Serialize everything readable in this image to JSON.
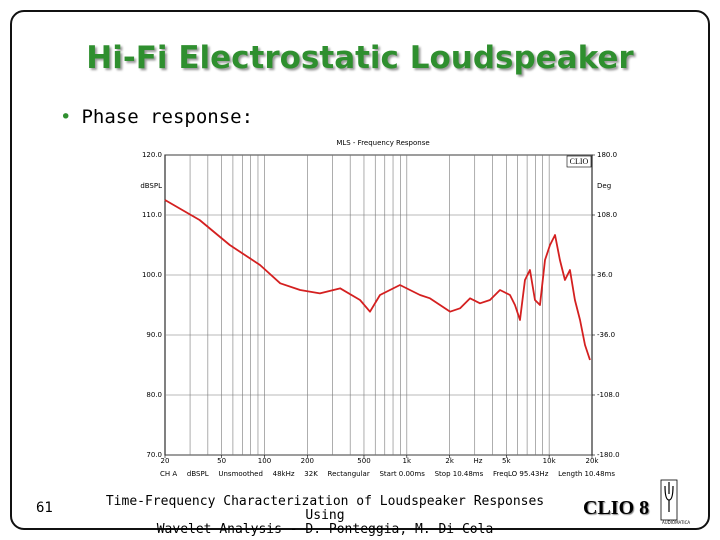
{
  "slide": {
    "title": "Hi-Fi Electrostatic Loudspeaker",
    "bullet": "Phase response:",
    "page_number": "61",
    "citation": [
      "Time-Frequency Characterization of Loudspeaker Responses Using",
      "Wavelet Analysis - D. Ponteggia, M. Di Cola"
    ],
    "logo": "CLIO 8",
    "logo_sub": "AUDIOMATICA"
  },
  "chart_data": {
    "type": "line",
    "title": "MLS - Frequency Response",
    "badge": "CLIO",
    "ylabel": "dBSPL",
    "y2label": "Deg",
    "xlabel": "Hz",
    "xscale": "log",
    "grid": true,
    "x": [
      20,
      35,
      57,
      93,
      129,
      178,
      245,
      340,
      469,
      551,
      648,
      895,
      1052,
      1238,
      1455,
      1711,
      2011,
      2364,
      2779,
      3267,
      3840,
      4514,
      5306,
      5752,
      6237,
      6762,
      7331,
      7950,
      8620,
      9350,
      10140,
      11000,
      11900,
      12910,
      14000,
      15170,
      16480,
      17860,
      19360
    ],
    "series": [
      {
        "color": "#d42020",
        "axis": "y2",
        "values": [
          126,
          102,
          72,
          48,
          26,
          18,
          14,
          20,
          6,
          -8,
          12,
          24,
          18,
          12,
          8,
          0,
          -8,
          -4,
          8,
          2,
          6,
          18,
          12,
          0,
          -18,
          30,
          42,
          6,
          0,
          54,
          72,
          84,
          54,
          30,
          42,
          6,
          -18,
          -48,
          -66
        ]
      }
    ],
    "xlim": [
      20,
      20000
    ],
    "xticks": [
      20,
      50,
      100,
      200,
      500,
      {
        "value": 1000,
        "label": "1k"
      },
      {
        "value": 2000,
        "label": "2k"
      },
      {
        "value": 5000,
        "label": "5k"
      },
      {
        "value": 10000,
        "label": "10k"
      },
      {
        "value": 20000,
        "label": "20k"
      }
    ],
    "ylim": [
      70,
      120
    ],
    "yticks": [
      {
        "value": 70,
        "label": "70.0"
      },
      {
        "value": 80,
        "label": "80.0"
      },
      {
        "value": 90,
        "label": "90.0"
      },
      {
        "value": 100,
        "label": "100.0"
      },
      {
        "value": 110,
        "label": "110.0"
      },
      {
        "value": 120,
        "label": "120.0"
      }
    ],
    "y2lim": [
      -180,
      180
    ],
    "y2ticks": [
      {
        "value": -180,
        "label": "-180.0"
      },
      {
        "value": -108,
        "label": "-108.0"
      },
      {
        "value": -36,
        "label": "-36.0"
      },
      {
        "value": 36,
        "label": "36.0"
      },
      {
        "value": 108,
        "label": "108.0"
      },
      {
        "value": 180,
        "label": "180.0"
      }
    ],
    "info": [
      "CH A",
      "dBSPL",
      "Unsmoothed",
      "48kHz",
      "32K",
      "Rectangular",
      "Start 0.00ms",
      "Stop 10.48ms",
      "FreqLO 95.43Hz",
      "Length 10.48ms"
    ]
  }
}
